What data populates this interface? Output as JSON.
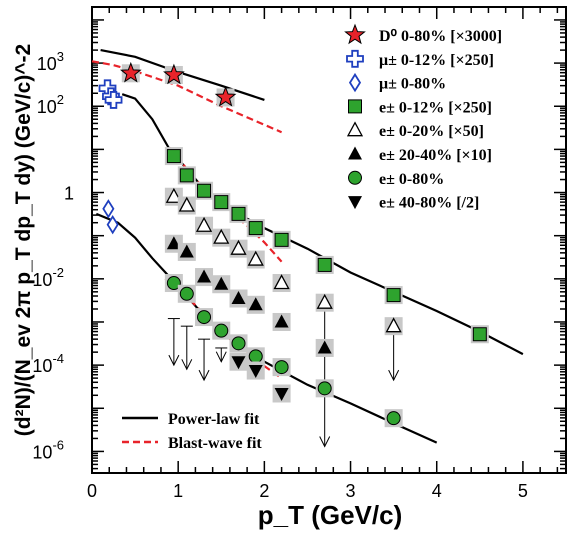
{
  "chart_data": {
    "type": "scatter",
    "xlabel": "p_T (GeV/c)",
    "ylabel": "(d²N)/(N_ev 2π p_T dp_T dy) (GeV/c)^-2",
    "x_range": [
      0,
      5.5
    ],
    "y_range_log10": [
      -6.5,
      4.3
    ],
    "y_scale": "log",
    "x_ticks": [
      "0",
      "1",
      "2",
      "3",
      "4",
      "5"
    ],
    "y_ticks": [
      {
        "base": "10",
        "exp": "3"
      },
      {
        "base": "10",
        "exp": "2"
      },
      {
        "base": "1",
        "exp": ""
      },
      {
        "base": "10",
        "exp": "-2"
      },
      {
        "base": "10",
        "exp": "-4"
      },
      {
        "base": "10",
        "exp": "-6"
      }
    ],
    "legend": {
      "placement": "top-right",
      "entries": [
        {
          "label": "D⁰ 0-80% [×3000]",
          "marker": "star",
          "color": "#e8232a",
          "edge": "#000000"
        },
        {
          "label": "μ± 0-12% [×250]",
          "marker": "cross-open",
          "color": "#1f3fbf"
        },
        {
          "label": "μ± 0-80%",
          "marker": "diamond-open",
          "color": "#1f3fbf"
        },
        {
          "label": "e± 0-12% [×250]",
          "marker": "square",
          "color": "#2ea32e"
        },
        {
          "label": "e± 0-20% [×50]",
          "marker": "triangle-up-open",
          "color": "#000000"
        },
        {
          "label": "e± 20-40% [×10]",
          "marker": "triangle-up",
          "color": "#000000"
        },
        {
          "label": "e± 0-80%",
          "marker": "circle",
          "color": "#2ea32e"
        },
        {
          "label": "e± 40-80% [/2]",
          "marker": "triangle-down",
          "color": "#000000"
        }
      ]
    },
    "fit_legend": [
      {
        "label": "Power-law fit",
        "style": "solid",
        "color": "#000000"
      },
      {
        "label": "Blast-wave fit",
        "style": "dashed",
        "color": "#e8232a"
      }
    ],
    "series": [
      {
        "name": "D⁰ 0-80% [×3000]",
        "marker": "star",
        "points": [
          {
            "x": 0.45,
            "y": 580
          },
          {
            "x": 0.95,
            "y": 530
          },
          {
            "x": 1.55,
            "y": 160
          }
        ]
      },
      {
        "name": "μ± 0-12% [×250]",
        "marker": "cross-open",
        "points": [
          {
            "x": 0.18,
            "y": 260
          },
          {
            "x": 0.22,
            "y": 170
          },
          {
            "x": 0.25,
            "y": 140
          }
        ]
      },
      {
        "name": "μ± 0-80%",
        "marker": "diamond-open",
        "points": [
          {
            "x": 0.19,
            "y": 0.42
          },
          {
            "x": 0.24,
            "y": 0.18
          }
        ]
      },
      {
        "name": "e± 0-12% [×250]",
        "marker": "square",
        "points": [
          {
            "x": 0.95,
            "y": 7.0
          },
          {
            "x": 1.1,
            "y": 2.5
          },
          {
            "x": 1.3,
            "y": 1.1
          },
          {
            "x": 1.5,
            "y": 0.6
          },
          {
            "x": 1.7,
            "y": 0.32
          },
          {
            "x": 1.9,
            "y": 0.15
          },
          {
            "x": 2.2,
            "y": 0.08
          },
          {
            "x": 2.7,
            "y": 0.021
          },
          {
            "x": 3.5,
            "y": 0.0042
          },
          {
            "x": 4.5,
            "y": 0.00052
          }
        ]
      },
      {
        "name": "e± 0-20% [×50]",
        "marker": "triangle-up-open",
        "points": [
          {
            "x": 0.95,
            "y": 0.8
          },
          {
            "x": 1.1,
            "y": 0.5
          },
          {
            "x": 1.3,
            "y": 0.17
          },
          {
            "x": 1.5,
            "y": 0.09
          },
          {
            "x": 1.7,
            "y": 0.05
          },
          {
            "x": 1.9,
            "y": 0.028
          },
          {
            "x": 2.2,
            "y": 0.008
          },
          {
            "x": 2.7,
            "y": 0.0028
          },
          {
            "x": 3.5,
            "y": 0.0008
          }
        ]
      },
      {
        "name": "e± 20-40% [×10]",
        "marker": "triangle-up",
        "points": [
          {
            "x": 0.95,
            "y": 0.065
          },
          {
            "x": 1.1,
            "y": 0.042
          },
          {
            "x": 1.3,
            "y": 0.011
          },
          {
            "x": 1.5,
            "y": 0.0075
          },
          {
            "x": 1.7,
            "y": 0.0035
          },
          {
            "x": 1.9,
            "y": 0.0025
          },
          {
            "x": 2.2,
            "y": 0.001
          },
          {
            "x": 2.7,
            "y": 0.00025
          }
        ]
      },
      {
        "name": "e± 0-80%",
        "marker": "circle",
        "points": [
          {
            "x": 0.95,
            "y": 0.008
          },
          {
            "x": 1.1,
            "y": 0.0045
          },
          {
            "x": 1.3,
            "y": 0.0013
          },
          {
            "x": 1.5,
            "y": 0.00063
          },
          {
            "x": 1.7,
            "y": 0.00032
          },
          {
            "x": 1.9,
            "y": 0.00016
          },
          {
            "x": 2.2,
            "y": 9e-05
          },
          {
            "x": 2.7,
            "y": 2.9e-05
          },
          {
            "x": 3.5,
            "y": 5.9e-06
          }
        ]
      },
      {
        "name": "e± 40-80% [/2]",
        "marker": "triangle-down",
        "points": [
          {
            "x": 1.7,
            "y": 0.00012
          },
          {
            "x": 1.9,
            "y": 7.5e-05
          },
          {
            "x": 2.2,
            "y": 2.2e-05
          }
        ]
      }
    ],
    "upper_limits": [
      {
        "x": 0.95,
        "y_top": 0.0012,
        "y_tip": 0.0001
      },
      {
        "x": 1.1,
        "y_top": 0.0008,
        "y_tip": 8e-05
      },
      {
        "x": 1.3,
        "y_top": 0.0004,
        "y_tip": 4.5e-05
      },
      {
        "x": 1.5,
        "y_top": 0.00025,
        "y_tip": 0.00012
      },
      {
        "x": 2.7,
        "y_top": 0.0028,
        "y_tip": 1.3e-06
      },
      {
        "x": 3.5,
        "y_top": 0.0006,
        "y_tip": 4.5e-05
      }
    ],
    "fits": [
      {
        "style": "solid",
        "points": [
          [
            0.1,
            2000
          ],
          [
            0.5,
            1400
          ],
          [
            1.0,
            620
          ],
          [
            1.5,
            300
          ],
          [
            2.0,
            140
          ]
        ]
      },
      {
        "style": "dashed",
        "points": [
          [
            0.0,
            1100
          ],
          [
            0.25,
            900
          ],
          [
            0.5,
            650
          ],
          [
            1.0,
            300
          ],
          [
            1.5,
            100
          ],
          [
            2.2,
            25
          ]
        ]
      },
      {
        "style": "solid",
        "points": [
          [
            0.35,
            190
          ],
          [
            0.5,
            150
          ],
          [
            0.7,
            50
          ],
          [
            0.9,
            10
          ],
          [
            1.0,
            6
          ],
          [
            1.3,
            1.2
          ],
          [
            1.7,
            0.32
          ],
          [
            2.0,
            0.15
          ],
          [
            2.5,
            0.05
          ],
          [
            3.0,
            0.014
          ],
          [
            3.5,
            0.005
          ],
          [
            4.0,
            0.0018
          ],
          [
            4.5,
            0.0006
          ],
          [
            5.0,
            0.00018
          ]
        ]
      },
      {
        "style": "dashed",
        "points": [
          [
            0.9,
            11
          ],
          [
            1.2,
            2.0
          ],
          [
            1.5,
            0.55
          ],
          [
            1.8,
            0.17
          ],
          [
            2.0,
            0.07
          ],
          [
            2.2,
            0.025
          ]
        ]
      },
      {
        "style": "solid",
        "points": [
          [
            0.05,
            0.32
          ],
          [
            0.3,
            0.2
          ],
          [
            0.5,
            0.09
          ],
          [
            0.7,
            0.03
          ],
          [
            0.9,
            0.011
          ],
          [
            1.1,
            0.004
          ],
          [
            1.3,
            0.0014
          ],
          [
            1.5,
            0.0006
          ],
          [
            2.0,
            0.00012
          ],
          [
            2.5,
            3.5e-05
          ],
          [
            3.0,
            1.3e-05
          ],
          [
            3.5,
            4.5e-06
          ],
          [
            4.0,
            1.6e-06
          ]
        ]
      },
      {
        "style": "dashed",
        "points": [
          [
            0.85,
            0.01
          ],
          [
            1.1,
            0.004
          ],
          [
            1.3,
            0.0015
          ],
          [
            1.5,
            0.0006
          ],
          [
            1.8,
            0.00018
          ],
          [
            2.2,
            5e-05
          ]
        ]
      }
    ]
  }
}
